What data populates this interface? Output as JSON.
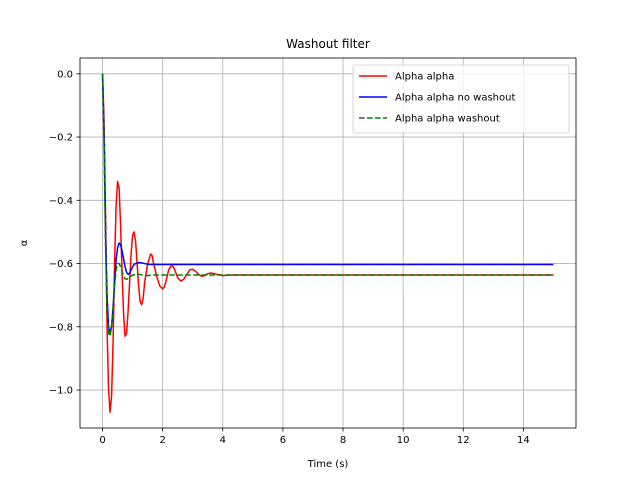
{
  "chart_data": {
    "type": "line",
    "title": "Washout filter",
    "xlabel": "Time (s)",
    "ylabel": "α",
    "xlim": [
      -0.75,
      15.75
    ],
    "ylim": [
      -1.12,
      0.05
    ],
    "xticks": [
      0,
      2,
      4,
      6,
      8,
      10,
      12,
      14
    ],
    "yticks": [
      0.0,
      -0.2,
      -0.4,
      -0.6,
      -0.8,
      -1.0
    ],
    "xtick_labels": [
      "0",
      "2",
      "4",
      "6",
      "8",
      "10",
      "12",
      "14"
    ],
    "ytick_labels": [
      "0.0",
      "−0.2",
      "−0.4",
      "−0.6",
      "−0.8",
      "−1.0"
    ],
    "grid": true,
    "legend_position": "top-right",
    "series": [
      {
        "name": "Alpha alpha",
        "color": "#ff0000",
        "style": "solid",
        "x": [
          0,
          0.05,
          0.1,
          0.15,
          0.2,
          0.25,
          0.3,
          0.35,
          0.4,
          0.45,
          0.5,
          0.55,
          0.6,
          0.65,
          0.7,
          0.75,
          0.8,
          0.85,
          0.9,
          0.95,
          1.0,
          1.05,
          1.1,
          1.15,
          1.2,
          1.25,
          1.3,
          1.35,
          1.4,
          1.5,
          1.6,
          1.65,
          1.7,
          1.8,
          1.9,
          2.0,
          2.05,
          2.1,
          2.2,
          2.3,
          2.35,
          2.4,
          2.5,
          2.6,
          2.7,
          2.8,
          2.9,
          3.0,
          3.1,
          3.2,
          3.3,
          3.4,
          3.5,
          3.6,
          3.8,
          4.0,
          4.2,
          4.5,
          5,
          6,
          7,
          8,
          9,
          10,
          11,
          12,
          13,
          14,
          15
        ],
        "y": [
          0,
          -0.15,
          -0.45,
          -0.8,
          -1.0,
          -1.07,
          -1.02,
          -0.85,
          -0.6,
          -0.42,
          -0.34,
          -0.36,
          -0.48,
          -0.63,
          -0.76,
          -0.83,
          -0.82,
          -0.75,
          -0.66,
          -0.57,
          -0.51,
          -0.5,
          -0.53,
          -0.6,
          -0.67,
          -0.72,
          -0.73,
          -0.71,
          -0.66,
          -0.6,
          -0.57,
          -0.575,
          -0.6,
          -0.64,
          -0.67,
          -0.68,
          -0.675,
          -0.66,
          -0.62,
          -0.605,
          -0.61,
          -0.62,
          -0.645,
          -0.655,
          -0.65,
          -0.635,
          -0.62,
          -0.618,
          -0.625,
          -0.635,
          -0.64,
          -0.638,
          -0.632,
          -0.63,
          -0.634,
          -0.638,
          -0.636,
          -0.636,
          -0.636,
          -0.636,
          -0.636,
          -0.636,
          -0.636,
          -0.636,
          -0.636,
          -0.636,
          -0.636,
          -0.636,
          -0.636
        ]
      },
      {
        "name": "Alpha alpha no washout",
        "color": "#0000ff",
        "style": "solid",
        "x": [
          0,
          0.05,
          0.1,
          0.15,
          0.2,
          0.25,
          0.3,
          0.35,
          0.4,
          0.45,
          0.5,
          0.55,
          0.6,
          0.65,
          0.7,
          0.75,
          0.8,
          0.85,
          0.9,
          0.95,
          1.0,
          1.05,
          1.1,
          1.2,
          1.3,
          1.4,
          1.5,
          1.6,
          1.8,
          2,
          3,
          4,
          6,
          8,
          10,
          12,
          14,
          15
        ],
        "y": [
          0,
          -0.2,
          -0.5,
          -0.7,
          -0.8,
          -0.82,
          -0.8,
          -0.74,
          -0.66,
          -0.59,
          -0.55,
          -0.535,
          -0.54,
          -0.56,
          -0.585,
          -0.61,
          -0.628,
          -0.634,
          -0.63,
          -0.62,
          -0.61,
          -0.603,
          -0.6,
          -0.597,
          -0.598,
          -0.6,
          -0.602,
          -0.603,
          -0.603,
          -0.603,
          -0.603,
          -0.603,
          -0.603,
          -0.603,
          -0.603,
          -0.603,
          -0.603,
          -0.603
        ]
      },
      {
        "name": "Alpha alpha washout",
        "color": "#008000",
        "style": "dashed",
        "x": [
          0,
          0.05,
          0.1,
          0.15,
          0.2,
          0.25,
          0.3,
          0.35,
          0.4,
          0.45,
          0.5,
          0.55,
          0.6,
          0.65,
          0.7,
          0.75,
          0.8,
          0.85,
          0.9,
          1.0,
          1.1,
          1.2,
          1.3,
          1.4,
          1.5,
          1.6,
          1.8,
          2,
          3,
          4,
          6,
          8,
          10,
          12,
          14,
          15
        ],
        "y": [
          0,
          -0.22,
          -0.55,
          -0.75,
          -0.82,
          -0.83,
          -0.8,
          -0.74,
          -0.67,
          -0.62,
          -0.6,
          -0.6,
          -0.61,
          -0.625,
          -0.64,
          -0.648,
          -0.65,
          -0.647,
          -0.642,
          -0.637,
          -0.634,
          -0.634,
          -0.636,
          -0.638,
          -0.638,
          -0.637,
          -0.636,
          -0.636,
          -0.636,
          -0.636,
          -0.636,
          -0.636,
          -0.636,
          -0.636,
          -0.636,
          -0.636
        ]
      }
    ]
  }
}
